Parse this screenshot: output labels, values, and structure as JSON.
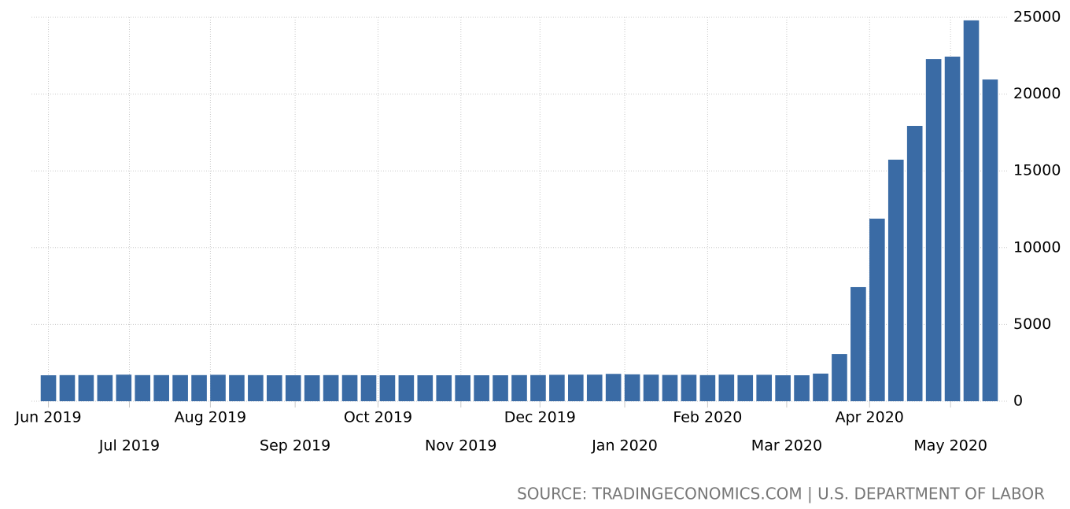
{
  "chart_data": {
    "type": "bar",
    "source": "SOURCE: TRADINGECONOMICS.COM | U.S. DEPARTMENT OF LABOR",
    "categories": [
      null,
      null,
      null,
      null,
      null,
      null,
      null,
      null,
      null,
      null,
      null,
      null,
      null,
      null,
      null,
      null,
      null,
      null,
      null,
      null,
      null,
      null,
      null,
      null,
      null,
      null,
      null,
      null,
      null,
      null,
      null,
      null,
      null,
      null,
      null,
      null,
      null,
      null,
      null,
      null,
      null,
      null,
      null,
      null,
      null,
      null,
      null,
      null,
      null,
      null,
      null
    ],
    "values": [
      1690,
      1700,
      1700,
      1700,
      1730,
      1700,
      1700,
      1700,
      1700,
      1720,
      1700,
      1700,
      1690,
      1690,
      1690,
      1700,
      1700,
      1690,
      1690,
      1690,
      1690,
      1690,
      1690,
      1690,
      1690,
      1700,
      1700,
      1720,
      1730,
      1730,
      1780,
      1750,
      1730,
      1710,
      1720,
      1700,
      1730,
      1700,
      1720,
      1690,
      1690,
      1800,
      3070,
      7430,
      11890,
      15730,
      17930,
      22280,
      22440,
      24800,
      20950
    ],
    "color": "#3a6ba5",
    "xlim": [
      -0.9,
      50.9
    ],
    "xticks": [
      {
        "value": 0,
        "label": "Jun 2019"
      },
      {
        "value": 4.3,
        "label": "Jul 2019"
      },
      {
        "value": 8.6,
        "label": "Aug 2019"
      },
      {
        "value": 13.1,
        "label": "Sep 2019"
      },
      {
        "value": 17.5,
        "label": "Oct 2019"
      },
      {
        "value": 21.9,
        "label": "Nov 2019"
      },
      {
        "value": 26.1,
        "label": "Dec 2019"
      },
      {
        "value": 30.6,
        "label": "Jan 2020"
      },
      {
        "value": 35.0,
        "label": "Feb 2020"
      },
      {
        "value": 39.2,
        "label": "Mar 2020"
      },
      {
        "value": 43.6,
        "label": "Apr 2020"
      },
      {
        "value": 47.9,
        "label": "May 2020"
      }
    ],
    "ylim": [
      0,
      25000
    ],
    "yticks": [
      0,
      5000,
      10000,
      15000,
      20000,
      25000
    ],
    "grid": true
  }
}
